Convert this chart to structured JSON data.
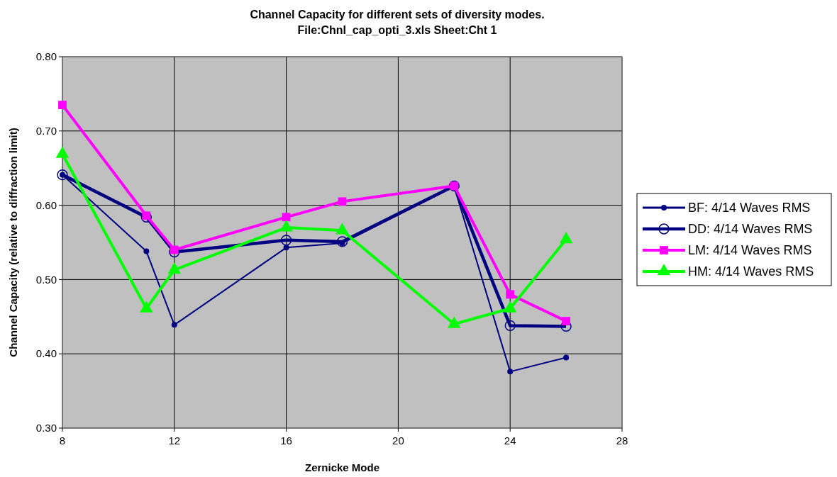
{
  "chart_data": {
    "type": "line",
    "title": "Channel Capacity for different sets of diversity modes.",
    "subtitle": "File:Chnl_cap_opti_3.xls  Sheet:Cht 1",
    "xlabel": "Zernicke Mode",
    "ylabel": "Channel Capacity (relative to diffraction limit)",
    "x": [
      8,
      11,
      12,
      16,
      18,
      22,
      24,
      26
    ],
    "xlim": [
      8,
      28
    ],
    "xticks": [
      8,
      12,
      16,
      20,
      24,
      28
    ],
    "ylim": [
      0.3,
      0.8
    ],
    "yticks": [
      {
        "value": 0.3,
        "label": "0.30"
      },
      {
        "value": 0.4,
        "label": "0.40"
      },
      {
        "value": 0.5,
        "label": "0.50"
      },
      {
        "value": 0.6,
        "label": "0.60"
      },
      {
        "value": 0.7,
        "label": "0.70"
      },
      {
        "value": 0.8,
        "label": "0.80"
      }
    ],
    "grid": true,
    "legend": "right",
    "series": [
      {
        "name": "BF: 4/14 Waves RMS",
        "color": "#000080",
        "marker": "circle",
        "values": [
          0.641,
          0.538,
          0.439,
          0.543,
          0.549,
          0.625,
          0.376,
          0.395
        ]
      },
      {
        "name": "DD: 4/14 Waves RMS",
        "color": "#000080",
        "marker": "circle",
        "values": [
          0.641,
          0.584,
          0.537,
          0.553,
          0.551,
          0.626,
          0.438,
          0.437
        ]
      },
      {
        "name": "LM: 4/14 Waves RMS",
        "color": "#ff00ff",
        "marker": "square",
        "values": [
          0.735,
          0.586,
          0.54,
          0.584,
          0.605,
          0.626,
          0.48,
          0.444
        ]
      },
      {
        "name": "HM: 4/14 Waves RMS",
        "color": "#00ff00",
        "marker": "triangle",
        "values": [
          0.669,
          0.461,
          0.513,
          0.57,
          0.566,
          0.44,
          0.461,
          0.554
        ]
      }
    ]
  }
}
